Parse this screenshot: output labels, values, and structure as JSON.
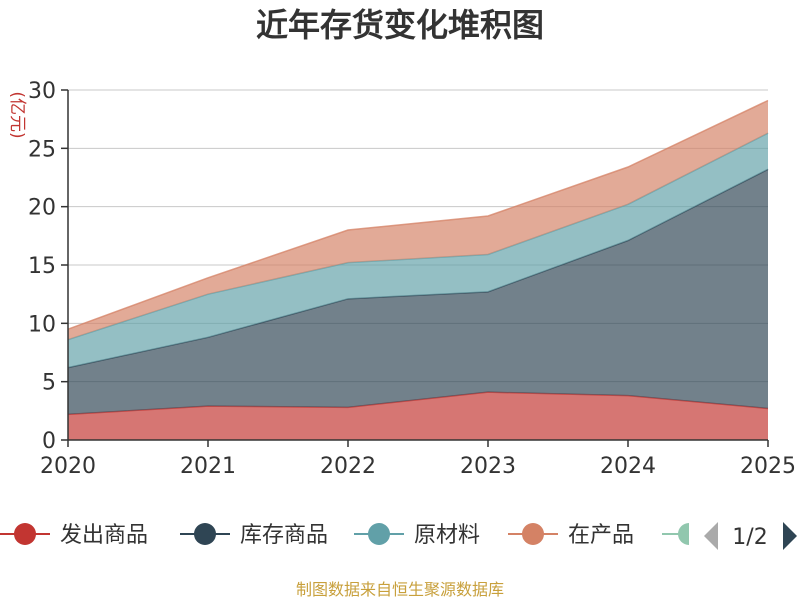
{
  "chart_data": {
    "type": "area",
    "stacked": true,
    "title": "近年存货变化堆积图",
    "ylabel": "(亿元)",
    "xlabel": "",
    "x": [
      "2020",
      "2021",
      "2022",
      "2023",
      "2024",
      "2025"
    ],
    "ylim": [
      0,
      30
    ],
    "yticks": [
      0,
      5,
      10,
      15,
      20,
      25,
      30
    ],
    "grid": true,
    "series": [
      {
        "name": "发出商品",
        "values": [
          2.2,
          2.9,
          2.8,
          4.1,
          3.8,
          2.7
        ],
        "color": "#c23531"
      },
      {
        "name": "库存商品",
        "values": [
          4.0,
          5.9,
          9.3,
          8.6,
          13.3,
          20.5
        ],
        "color": "#2f4554"
      },
      {
        "name": "原材料",
        "values": [
          2.4,
          3.7,
          3.1,
          3.2,
          3.1,
          3.1
        ],
        "color": "#61a0a8"
      },
      {
        "name": "在产品",
        "values": [
          0.9,
          1.4,
          2.8,
          3.3,
          3.2,
          2.8
        ],
        "color": "#d48265"
      }
    ],
    "legend": {
      "placement": "bottom",
      "partial_item_color": "#91c7ae",
      "page": "1/2"
    }
  },
  "source_text": "制图数据来自恒生聚源数据库"
}
